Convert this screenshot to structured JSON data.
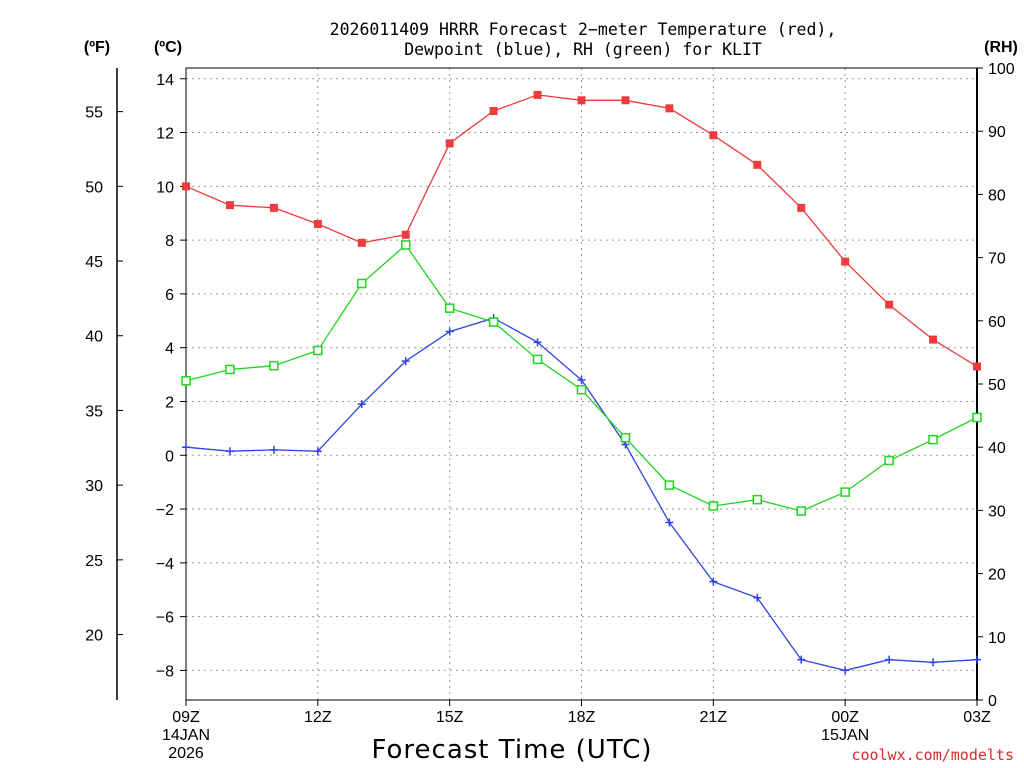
{
  "chart_data": {
    "type": "line",
    "title_line1": "2026011409 HRRR Forecast 2−meter Temperature (red),",
    "title_line2": "Dewpoint (blue), RH (green) for KLIT",
    "xlabel": "Forecast Time (UTC)",
    "credit": "coolwx.com/modelts",
    "unit_f": "(ºF)",
    "unit_c": "(ºC)",
    "unit_rh": "(RH)",
    "x_hours": [
      0,
      1,
      2,
      3,
      4,
      5,
      6,
      7,
      8,
      9,
      10,
      11,
      12,
      13,
      14,
      15,
      16,
      17,
      18
    ],
    "x_ticks": [
      {
        "hour": 0,
        "label": "09Z"
      },
      {
        "hour": 3,
        "label": "12Z"
      },
      {
        "hour": 6,
        "label": "15Z"
      },
      {
        "hour": 9,
        "label": "18Z"
      },
      {
        "hour": 12,
        "label": "21Z"
      },
      {
        "hour": 15,
        "label": "00Z"
      },
      {
        "hour": 18,
        "label": "03Z"
      }
    ],
    "date_labels": [
      {
        "hour": 0,
        "lines": [
          "14JAN",
          "2026"
        ]
      },
      {
        "hour": 15,
        "lines": [
          "15JAN"
        ]
      }
    ],
    "ylim_c": [
      -9.1,
      14.4
    ],
    "yticks_c": [
      -8,
      -6,
      -4,
      -2,
      0,
      2,
      4,
      6,
      8,
      10,
      12,
      14
    ],
    "yticks_f": [
      20,
      25,
      30,
      35,
      40,
      45,
      50,
      55
    ],
    "ylim_rh": [
      0,
      100
    ],
    "yticks_rh": [
      0,
      10,
      20,
      30,
      40,
      50,
      60,
      70,
      80,
      90,
      100
    ],
    "grid": true,
    "series": [
      {
        "name": "Temperature",
        "axis": "c",
        "color": "#ee3b3b",
        "marker": "filled-square",
        "values": [
          10.0,
          9.3,
          9.2,
          8.6,
          7.9,
          8.2,
          11.6,
          12.8,
          13.4,
          13.2,
          13.2,
          12.9,
          11.9,
          10.8,
          9.2,
          7.2,
          5.6,
          4.3,
          3.3
        ]
      },
      {
        "name": "Dewpoint",
        "axis": "c",
        "color": "#2d44e0",
        "marker": "plus",
        "values": [
          0.3,
          0.15,
          0.2,
          0.15,
          1.9,
          3.5,
          4.6,
          5.1,
          4.2,
          2.8,
          0.4,
          -2.5,
          -4.7,
          -5.3,
          -7.6,
          -8.0,
          -7.6,
          -7.7,
          -7.6
        ]
      },
      {
        "name": "RH",
        "axis": "rh",
        "color": "#22d422",
        "marker": "open-square",
        "values": [
          50.5,
          52.3,
          52.9,
          55.3,
          65.9,
          72.0,
          62.0,
          59.8,
          53.9,
          49.1,
          41.5,
          34.0,
          30.7,
          31.7,
          29.9,
          32.9,
          37.9,
          41.2,
          44.7
        ]
      }
    ]
  }
}
